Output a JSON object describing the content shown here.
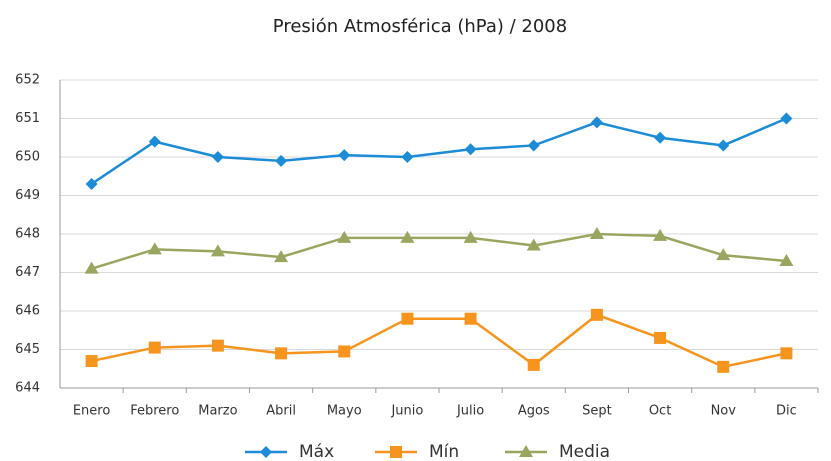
{
  "chart_data": {
    "type": "line",
    "title": "Presión Atmosférica (hPa) / 2008",
    "categories": [
      "Enero",
      "Febrero",
      "Marzo",
      "Abril",
      "Mayo",
      "Junio",
      "Julio",
      "Agos",
      "Sept",
      "Oct",
      "Nov",
      "Dic"
    ],
    "series": [
      {
        "name": "Máx",
        "color": "#1c8cd6",
        "marker": "diamond",
        "values": [
          649.3,
          650.4,
          650.0,
          649.9,
          650.05,
          650.0,
          650.2,
          650.3,
          650.9,
          650.5,
          650.3,
          651.0
        ]
      },
      {
        "name": "Mín",
        "color": "#f7941d",
        "marker": "square",
        "values": [
          644.7,
          645.05,
          645.1,
          644.9,
          644.95,
          645.8,
          645.8,
          644.6,
          645.9,
          645.3,
          644.55,
          644.9
        ]
      },
      {
        "name": "Media",
        "color": "#99a660",
        "marker": "triangle",
        "values": [
          647.1,
          647.6,
          647.55,
          647.4,
          647.9,
          647.9,
          647.9,
          647.7,
          648.0,
          647.95,
          647.45,
          647.3
        ]
      }
    ],
    "ylim": [
      644,
      652
    ],
    "yticks": [
      644,
      645,
      646,
      647,
      648,
      649,
      650,
      651,
      652
    ],
    "grid": true
  }
}
